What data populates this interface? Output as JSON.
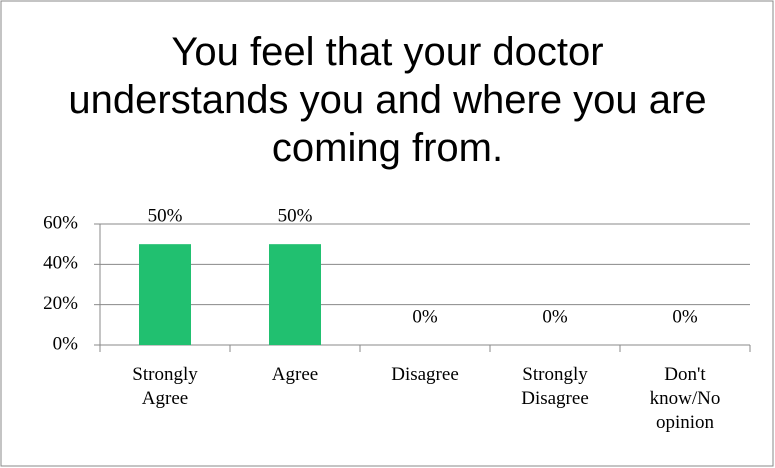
{
  "chart_data": {
    "type": "bar",
    "title": "You feel that your doctor understands you and where you are coming from.",
    "categories": [
      "Strongly Agree",
      "Agree",
      "Disagree",
      "Strongly Disagree",
      "Don't know/No opinion"
    ],
    "values": [
      50,
      50,
      0,
      0,
      0
    ],
    "value_labels": [
      "50%",
      "50%",
      "0%",
      "0%",
      "0%"
    ],
    "color": "#21c070",
    "ylim": [
      0,
      60
    ],
    "yticks": [
      {
        "value": 0,
        "label": "0%"
      },
      {
        "value": 20,
        "label": "20%"
      },
      {
        "value": 40,
        "label": "40%"
      },
      {
        "value": 60,
        "label": "60%"
      }
    ],
    "grid": true
  }
}
